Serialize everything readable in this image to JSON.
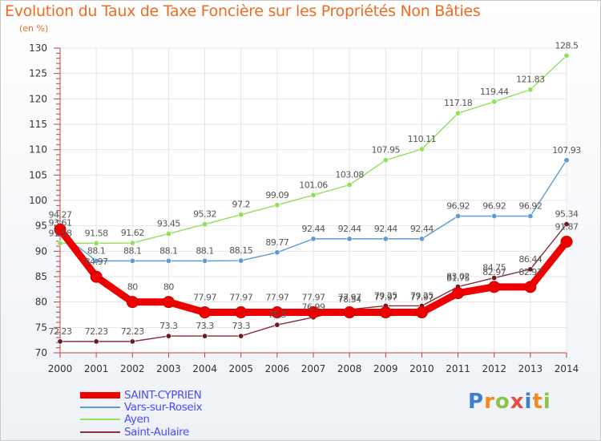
{
  "title": "Evolution du Taux de Taxe Foncière sur les Propriétés Non Bâties",
  "unit": "(en %)",
  "logo": {
    "text": "Proxiti",
    "colors": [
      "#3d7fd1",
      "#f08a1c",
      "#8bc34a",
      "#e74c3c",
      "#3d7fd1",
      "#f08a1c",
      "#8bc34a"
    ]
  },
  "chart_data": {
    "type": "line",
    "x": [
      "2000",
      "2001",
      "2002",
      "2003",
      "2004",
      "2005",
      "2006",
      "2007",
      "2008",
      "2009",
      "2010",
      "2011",
      "2012",
      "2013",
      "2014"
    ],
    "ylim": [
      70,
      130
    ],
    "yticks": [
      70,
      75,
      80,
      85,
      90,
      95,
      100,
      105,
      110,
      115,
      120,
      125,
      130
    ],
    "grid": true,
    "legend_position": "bottom-left",
    "series": [
      {
        "name": "SAINT-CYPRIEN",
        "color": "#ee0000",
        "width": 9,
        "values": [
          94.27,
          84.97,
          80,
          80,
          77.97,
          77.97,
          77.97,
          77.97,
          77.97,
          77.97,
          77.97,
          81.75,
          82.97,
          82.97,
          91.87
        ],
        "labels": [
          "94.27",
          "84.97",
          "80",
          "80",
          "77.97",
          "77.97",
          "77.97",
          "77.97",
          "77.97",
          "77.97",
          "77.97",
          "81.75",
          "82.97",
          "82.97",
          "91.87"
        ]
      },
      {
        "name": "Vars-sur-Roseix",
        "color": "#5f9bd2",
        "width": 1.4,
        "values": [
          93.61,
          88.1,
          88.1,
          88.1,
          88.1,
          88.15,
          89.77,
          92.44,
          92.44,
          92.44,
          92.44,
          96.92,
          96.92,
          96.92,
          107.93
        ],
        "labels": [
          "93.61",
          "88.1",
          "88.1",
          "88.1",
          "88.1",
          "88.15",
          "89.77",
          "92.44",
          "92.44",
          "92.44",
          "92.44",
          "96.92",
          "96.92",
          "96.92",
          "107.93"
        ]
      },
      {
        "name": "Ayen",
        "color": "#8fe05a",
        "width": 1.4,
        "values": [
          91.58,
          91.58,
          91.62,
          93.45,
          95.32,
          97.2,
          99.09,
          101.06,
          103.08,
          107.95,
          110.11,
          117.18,
          119.44,
          121.83,
          128.5
        ],
        "labels": [
          "91.58",
          "91.58",
          "91.62",
          "93.45",
          "95.32",
          "97.2",
          "99.09",
          "101.06",
          "103.08",
          "107.95",
          "110.11",
          "117.18",
          "119.44",
          "121.83",
          "128.5"
        ]
      },
      {
        "name": "Saint-Aulaire",
        "color": "#8a2f37",
        "width": 1.4,
        "values": [
          72.23,
          72.23,
          72.23,
          73.3,
          73.3,
          73.3,
          75.5,
          76.99,
          78.54,
          79.25,
          79.25,
          83.02,
          84.75,
          86.44,
          95.34
        ],
        "labels": [
          "72.23",
          "72.23",
          "72.23",
          "73.3",
          "73.3",
          "73.3",
          "75.5",
          "76.99",
          "78.54",
          "79.25",
          "79.25",
          "83.02",
          "84.75",
          "86.44",
          "95.34"
        ]
      }
    ]
  }
}
